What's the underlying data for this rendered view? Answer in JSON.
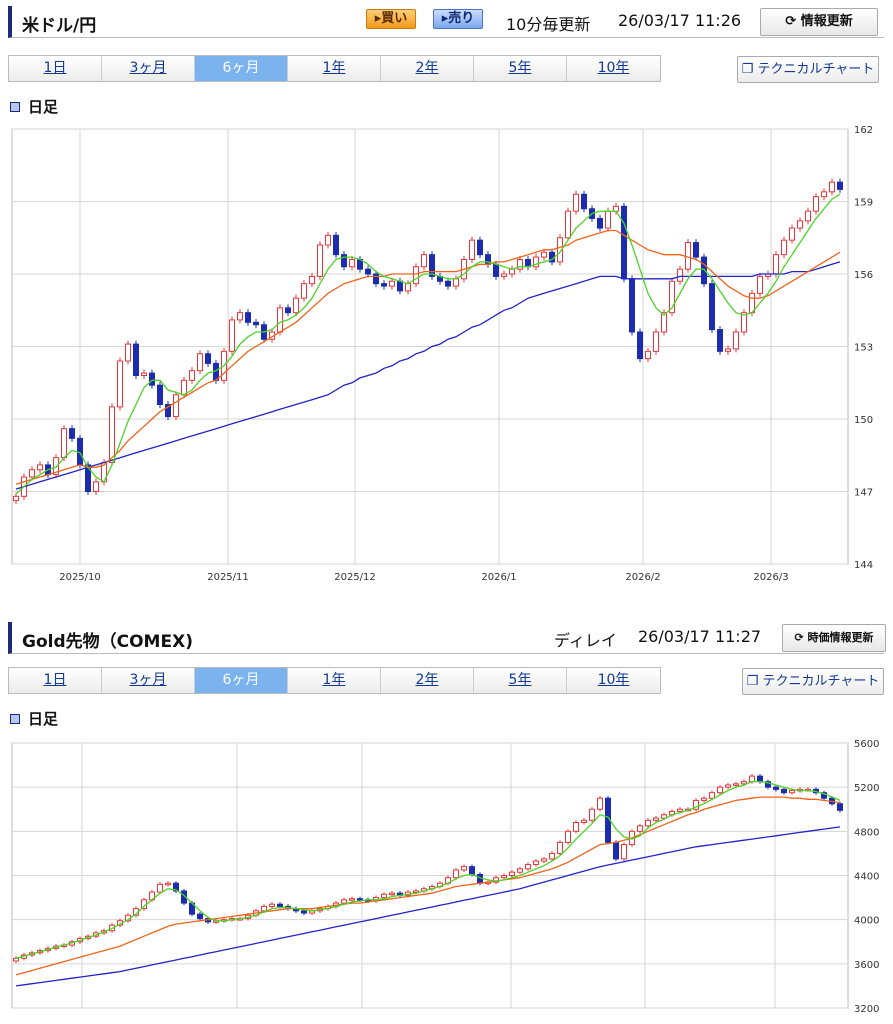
{
  "usd": {
    "title": "米ドル/円",
    "buy": "▸買い",
    "sell": "▸売り",
    "freq": "10分毎更新",
    "timestamp": "26/03/17 11:26",
    "refresh": "情報更新",
    "tabs": [
      "1日",
      "3ヶ月",
      "6ヶ月",
      "1年",
      "2年",
      "5年",
      "10年"
    ],
    "active_tab": 2,
    "tech_button": "テクニカルチャート",
    "subtitle": "日足"
  },
  "gold": {
    "title": "Gold先物（COMEX)",
    "delay": "ディレイ",
    "timestamp": "26/03/17 11:27",
    "refresh": "時価情報更新",
    "tabs": [
      "1日",
      "3ヶ月",
      "6ヶ月",
      "1年",
      "2年",
      "5年",
      "10年"
    ],
    "active_tab": 2,
    "tech_button": "テクニカルチャート",
    "subtitle": "日足"
  },
  "colors": {
    "up": "#e8363a",
    "down": "#1c2cae",
    "ma_short": "#4cd327",
    "ma_mid": "#f0641a",
    "ma_long": "#2323c8",
    "grid": "#d6d6d6"
  },
  "chart_data": [
    {
      "type": "candlestick",
      "ylim": [
        144,
        162
      ],
      "yticks": [
        "144",
        "147",
        "150",
        "153",
        "156",
        "159",
        "162"
      ],
      "xticks": [
        "2025/10",
        "2025/11",
        "2025/12",
        "2026/1",
        "2026/2",
        "2026/3"
      ],
      "legend": "none",
      "grid": true,
      "closes": [
        146.8,
        147.6,
        147.9,
        148.1,
        147.7,
        148.4,
        149.6,
        149.2,
        148.1,
        147.0,
        147.4,
        148.2,
        150.5,
        152.4,
        153.1,
        151.8,
        151.9,
        151.4,
        150.6,
        150.1,
        151.0,
        151.6,
        152.0,
        152.7,
        152.3,
        151.6,
        152.8,
        154.1,
        154.4,
        154.0,
        153.9,
        153.3,
        153.6,
        154.6,
        154.4,
        155.0,
        155.6,
        155.9,
        157.2,
        157.6,
        156.8,
        156.3,
        156.6,
        156.2,
        156.0,
        155.6,
        155.5,
        155.7,
        155.3,
        155.6,
        156.3,
        156.8,
        155.9,
        155.7,
        155.5,
        155.8,
        156.6,
        157.4,
        156.8,
        156.4,
        155.9,
        156.0,
        156.2,
        156.6,
        156.3,
        156.7,
        156.9,
        156.5,
        157.5,
        158.6,
        159.3,
        158.7,
        158.3,
        157.9,
        158.6,
        158.8,
        155.8,
        153.6,
        152.5,
        152.8,
        153.6,
        154.4,
        155.7,
        156.2,
        157.3,
        156.7,
        155.6,
        153.7,
        152.8,
        152.9,
        153.6,
        154.4,
        155.2,
        155.9,
        156.0,
        156.8,
        157.4,
        157.9,
        158.2,
        158.6,
        159.2,
        159.4,
        159.8,
        159.5
      ],
      "ma_short": [
        146.9,
        147.2,
        147.5,
        147.7,
        147.9,
        148.0,
        148.4,
        148.7,
        148.6,
        148.0,
        147.6,
        147.4,
        148.1,
        149.0,
        149.9,
        150.6,
        151.3,
        151.6,
        151.6,
        151.2,
        151.1,
        151.0,
        151.2,
        151.6,
        151.9,
        152.0,
        152.2,
        152.6,
        153.1,
        153.4,
        153.6,
        153.6,
        153.7,
        154.0,
        154.1,
        154.3,
        154.6,
        155.0,
        155.6,
        156.2,
        156.6,
        156.7,
        156.7,
        156.6,
        156.4,
        156.1,
        155.9,
        155.8,
        155.7,
        155.6,
        155.8,
        156.0,
        156.0,
        155.9,
        155.8,
        155.8,
        156.0,
        156.3,
        156.5,
        156.5,
        156.4,
        156.3,
        156.2,
        156.3,
        156.3,
        156.4,
        156.5,
        156.6,
        156.9,
        157.4,
        157.9,
        158.2,
        158.5,
        158.6,
        158.6,
        158.6,
        158.1,
        157.2,
        156.2,
        155.2,
        154.6,
        154.3,
        154.6,
        155.2,
        155.8,
        156.2,
        156.2,
        155.8,
        155.3,
        154.8,
        154.4,
        154.3,
        154.4,
        154.8,
        155.2,
        155.7,
        156.3,
        156.8,
        157.3,
        157.8,
        158.3,
        158.7,
        159.1,
        159.3
      ],
      "ma_mid": [
        147.3,
        147.4,
        147.5,
        147.6,
        147.7,
        147.8,
        147.9,
        148.0,
        148.1,
        148.0,
        148.0,
        148.1,
        148.4,
        148.7,
        149.1,
        149.4,
        149.7,
        150.0,
        150.3,
        150.5,
        150.7,
        150.9,
        151.1,
        151.3,
        151.5,
        151.6,
        151.9,
        152.2,
        152.5,
        152.8,
        153.0,
        153.2,
        153.4,
        153.6,
        153.8,
        154.0,
        154.3,
        154.6,
        154.9,
        155.2,
        155.4,
        155.6,
        155.7,
        155.8,
        155.9,
        155.9,
        155.9,
        156.0,
        156.0,
        156.0,
        156.0,
        156.1,
        156.1,
        156.1,
        156.1,
        156.1,
        156.2,
        156.3,
        156.4,
        156.4,
        156.5,
        156.5,
        156.6,
        156.7,
        156.8,
        156.9,
        157.0,
        157.0,
        157.1,
        157.2,
        157.4,
        157.5,
        157.6,
        157.7,
        157.8,
        157.8,
        157.6,
        157.4,
        157.2,
        157.0,
        156.9,
        156.8,
        156.8,
        156.8,
        156.7,
        156.6,
        156.4,
        156.1,
        155.8,
        155.5,
        155.3,
        155.1,
        155.0,
        155.0,
        155.1,
        155.3,
        155.5,
        155.7,
        155.9,
        156.1,
        156.3,
        156.5,
        156.7,
        156.9
      ],
      "ma_long": [
        147.1,
        147.2,
        147.3,
        147.4,
        147.5,
        147.6,
        147.7,
        147.8,
        147.9,
        148.0,
        148.1,
        148.2,
        148.3,
        148.4,
        148.5,
        148.6,
        148.7,
        148.8,
        148.9,
        149.0,
        149.1,
        149.2,
        149.3,
        149.4,
        149.5,
        149.6,
        149.7,
        149.8,
        149.9,
        150.0,
        150.1,
        150.2,
        150.3,
        150.4,
        150.5,
        150.6,
        150.7,
        150.8,
        150.9,
        151.0,
        151.2,
        151.4,
        151.5,
        151.7,
        151.8,
        151.9,
        152.1,
        152.2,
        152.4,
        152.5,
        152.7,
        152.8,
        153.0,
        153.1,
        153.3,
        153.4,
        153.6,
        153.8,
        153.9,
        154.1,
        154.3,
        154.5,
        154.6,
        154.8,
        155.0,
        155.1,
        155.2,
        155.3,
        155.4,
        155.5,
        155.6,
        155.7,
        155.8,
        155.9,
        155.9,
        155.9,
        155.8,
        155.8,
        155.8,
        155.8,
        155.8,
        155.8,
        155.8,
        155.9,
        155.9,
        155.9,
        155.9,
        155.9,
        155.9,
        155.9,
        155.9,
        155.9,
        155.9,
        156.0,
        156.0,
        156.0,
        156.0,
        156.1,
        156.1,
        156.1,
        156.2,
        156.3,
        156.4,
        156.5
      ]
    },
    {
      "type": "candlestick",
      "ylim": [
        3200,
        5600
      ],
      "yticks": [
        "3200",
        "3600",
        "4000",
        "4400",
        "4800",
        "5200",
        "5600"
      ],
      "xticks": [],
      "legend": "none",
      "grid": true,
      "closes": [
        3650,
        3680,
        3700,
        3720,
        3740,
        3760,
        3770,
        3800,
        3830,
        3850,
        3880,
        3900,
        3950,
        3990,
        4040,
        4100,
        4180,
        4250,
        4320,
        4330,
        4260,
        4150,
        4050,
        4010,
        3980,
        3990,
        4000,
        4010,
        4010,
        4040,
        4080,
        4120,
        4140,
        4120,
        4100,
        4080,
        4060,
        4080,
        4100,
        4120,
        4150,
        4180,
        4190,
        4180,
        4170,
        4200,
        4230,
        4240,
        4220,
        4250,
        4260,
        4280,
        4300,
        4330,
        4380,
        4450,
        4480,
        4410,
        4330,
        4340,
        4380,
        4400,
        4430,
        4460,
        4500,
        4530,
        4550,
        4600,
        4700,
        4800,
        4880,
        4900,
        5000,
        5100,
        4700,
        4550,
        4680,
        4800,
        4850,
        4900,
        4920,
        4950,
        4980,
        5000,
        5000,
        5080,
        5100,
        5150,
        5200,
        5220,
        5230,
        5250,
        5300,
        5250,
        5200,
        5180,
        5150,
        5170,
        5180,
        5180,
        5150,
        5100,
        5050,
        4990
      ],
      "ma_short": [
        3650,
        3670,
        3690,
        3710,
        3730,
        3750,
        3770,
        3790,
        3810,
        3840,
        3860,
        3890,
        3920,
        3960,
        4000,
        4050,
        4120,
        4180,
        4240,
        4280,
        4270,
        4220,
        4150,
        4080,
        4020,
        3990,
        3990,
        4000,
        4010,
        4020,
        4040,
        4070,
        4100,
        4110,
        4110,
        4100,
        4090,
        4080,
        4090,
        4100,
        4120,
        4140,
        4160,
        4170,
        4180,
        4180,
        4190,
        4210,
        4220,
        4230,
        4240,
        4260,
        4280,
        4300,
        4330,
        4370,
        4400,
        4410,
        4380,
        4360,
        4350,
        4360,
        4380,
        4400,
        4430,
        4460,
        4490,
        4530,
        4580,
        4650,
        4730,
        4800,
        4870,
        4950,
        4930,
        4820,
        4750,
        4730,
        4760,
        4830,
        4880,
        4910,
        4950,
        4970,
        4990,
        5020,
        5050,
        5090,
        5130,
        5170,
        5200,
        5220,
        5250,
        5250,
        5240,
        5220,
        5200,
        5180,
        5170,
        5170,
        5160,
        5140,
        5110,
        5080
      ],
      "ma_mid": [
        3500,
        3520,
        3540,
        3560,
        3580,
        3600,
        3620,
        3640,
        3660,
        3680,
        3700,
        3720,
        3740,
        3760,
        3790,
        3820,
        3850,
        3880,
        3910,
        3940,
        3960,
        3970,
        3980,
        3990,
        4000,
        4010,
        4020,
        4030,
        4040,
        4050,
        4060,
        4070,
        4080,
        4090,
        4100,
        4100,
        4100,
        4100,
        4110,
        4120,
        4130,
        4140,
        4150,
        4150,
        4160,
        4170,
        4180,
        4190,
        4200,
        4210,
        4220,
        4230,
        4240,
        4260,
        4280,
        4300,
        4310,
        4320,
        4330,
        4340,
        4350,
        4360,
        4370,
        4380,
        4400,
        4420,
        4440,
        4460,
        4490,
        4520,
        4560,
        4600,
        4640,
        4680,
        4690,
        4700,
        4720,
        4740,
        4770,
        4800,
        4830,
        4860,
        4890,
        4920,
        4950,
        4970,
        5000,
        5020,
        5040,
        5060,
        5080,
        5090,
        5100,
        5110,
        5110,
        5110,
        5110,
        5100,
        5100,
        5090,
        5090,
        5080,
        5070,
        5060
      ],
      "ma_long": [
        3400,
        3410,
        3420,
        3430,
        3440,
        3450,
        3460,
        3470,
        3480,
        3490,
        3500,
        3510,
        3520,
        3530,
        3545,
        3560,
        3575,
        3590,
        3605,
        3620,
        3635,
        3650,
        3665,
        3680,
        3695,
        3710,
        3725,
        3740,
        3755,
        3770,
        3785,
        3800,
        3815,
        3830,
        3845,
        3860,
        3875,
        3890,
        3905,
        3920,
        3935,
        3950,
        3965,
        3980,
        3995,
        4010,
        4025,
        4040,
        4055,
        4070,
        4085,
        4100,
        4115,
        4130,
        4145,
        4160,
        4175,
        4190,
        4205,
        4220,
        4235,
        4250,
        4265,
        4280,
        4300,
        4320,
        4340,
        4360,
        4380,
        4400,
        4420,
        4440,
        4460,
        4480,
        4495,
        4510,
        4525,
        4540,
        4555,
        4570,
        4585,
        4600,
        4615,
        4630,
        4645,
        4660,
        4670,
        4680,
        4690,
        4700,
        4710,
        4720,
        4730,
        4740,
        4750,
        4760,
        4770,
        4780,
        4790,
        4800,
        4810,
        4820,
        4830,
        4840
      ]
    }
  ]
}
